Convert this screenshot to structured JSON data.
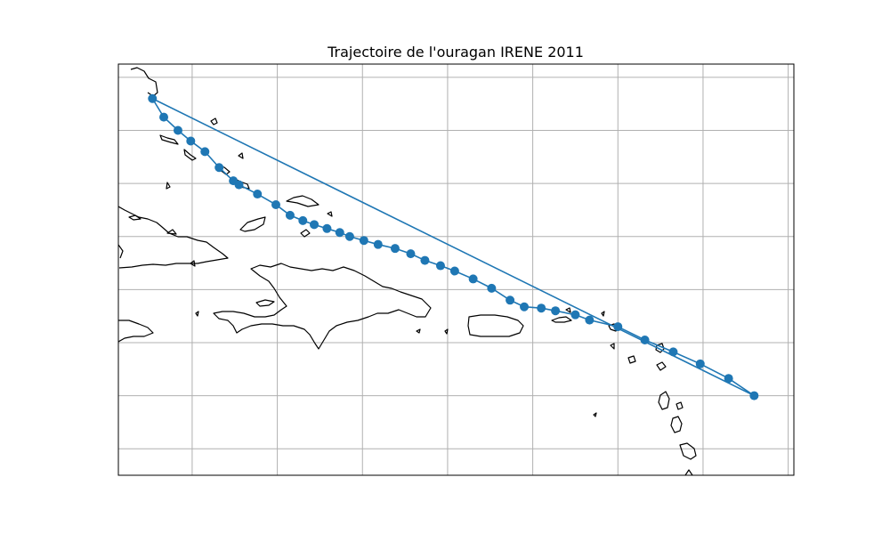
{
  "figure": {
    "title": "Trajectoire de l'ouragan IRENE 2011"
  },
  "style": {
    "track_color": "#1f77b4",
    "coast_color": "#000000",
    "grid_color": "#b0b0b0",
    "background": "#ffffff"
  },
  "chart_data": {
    "type": "line",
    "title": "Trajectoire de l'ouragan IRENE 2011",
    "xlabel": "",
    "ylabel": "",
    "x_unit": "longitude (degrees)",
    "y_unit": "latitude (degrees)",
    "xlim": [
      -78.6,
      -54.8
    ],
    "ylim": [
      14.0,
      29.5
    ],
    "grid": true,
    "xticks": [
      -76,
      -73,
      -70,
      -67,
      -64,
      -61,
      -58,
      -55
    ],
    "yticks": [
      15,
      17,
      19,
      21,
      23,
      25,
      27,
      29
    ],
    "series": [
      {
        "marker": "circle",
        "points": [
          {
            "lon": -77.4,
            "lat": 28.2
          },
          {
            "lon": -77.0,
            "lat": 27.5
          },
          {
            "lon": -76.5,
            "lat": 27.0
          },
          {
            "lon": -76.05,
            "lat": 26.6
          },
          {
            "lon": -75.55,
            "lat": 26.2
          },
          {
            "lon": -75.05,
            "lat": 25.6
          },
          {
            "lon": -74.55,
            "lat": 25.1
          },
          {
            "lon": -74.35,
            "lat": 24.95
          },
          {
            "lon": -73.7,
            "lat": 24.6
          },
          {
            "lon": -73.05,
            "lat": 24.2
          },
          {
            "lon": -72.55,
            "lat": 23.8
          },
          {
            "lon": -72.1,
            "lat": 23.6
          },
          {
            "lon": -71.7,
            "lat": 23.45
          },
          {
            "lon": -71.25,
            "lat": 23.3
          },
          {
            "lon": -70.8,
            "lat": 23.15
          },
          {
            "lon": -70.45,
            "lat": 23.0
          },
          {
            "lon": -69.95,
            "lat": 22.85
          },
          {
            "lon": -69.45,
            "lat": 22.7
          },
          {
            "lon": -68.85,
            "lat": 22.55
          },
          {
            "lon": -68.3,
            "lat": 22.35
          },
          {
            "lon": -67.8,
            "lat": 22.1
          },
          {
            "lon": -67.25,
            "lat": 21.9
          },
          {
            "lon": -66.75,
            "lat": 21.7
          },
          {
            "lon": -66.1,
            "lat": 21.4
          },
          {
            "lon": -65.45,
            "lat": 21.05
          },
          {
            "lon": -64.8,
            "lat": 20.6
          },
          {
            "lon": -64.3,
            "lat": 20.35
          },
          {
            "lon": -63.7,
            "lat": 20.3
          },
          {
            "lon": -63.2,
            "lat": 20.2
          },
          {
            "lon": -62.5,
            "lat": 20.05
          },
          {
            "lon": -62.0,
            "lat": 19.85
          },
          {
            "lon": -61.0,
            "lat": 19.6
          },
          {
            "lon": -60.05,
            "lat": 19.1
          },
          {
            "lon": -59.05,
            "lat": 18.65
          },
          {
            "lon": -58.1,
            "lat": 18.2
          },
          {
            "lon": -57.1,
            "lat": 17.65
          },
          {
            "lon": -56.2,
            "lat": 17.0
          }
        ],
        "closing_segment": {
          "from": {
            "lon": -56.2,
            "lat": 17.0
          },
          "to": {
            "lon": -77.4,
            "lat": 28.2
          }
        }
      }
    ]
  }
}
